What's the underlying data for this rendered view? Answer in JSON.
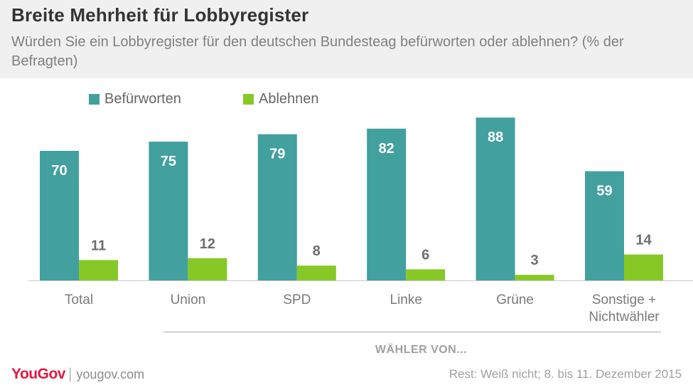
{
  "header": {
    "title": "Breite Mehrheit für Lobbyregister",
    "subtitle": "Würden Sie ein Lobbyregister für den deutschen Bundesteag befürworten oder ablehnen? (% der Befragten)"
  },
  "colors": {
    "befuerworten": "#42a09f",
    "ablehnen": "#86c926",
    "header_bg": "#f0f0f0",
    "brand": "#e5173f"
  },
  "chart_data": {
    "type": "bar",
    "categories": [
      "Total",
      "Union",
      "SPD",
      "Linke",
      "Grüne",
      "Sonstige + Nichtwähler"
    ],
    "series": [
      {
        "name": "Befürworten",
        "values": [
          70,
          75,
          79,
          82,
          88,
          59
        ]
      },
      {
        "name": "Ablehnen",
        "values": [
          11,
          12,
          8,
          6,
          3,
          14
        ]
      }
    ],
    "ylim": [
      0,
      100
    ],
    "grid": false,
    "legend": "top-left",
    "group_caption": "WÄHLER VON..."
  },
  "footer": {
    "logo": "YouGov",
    "separator": "|",
    "url": "yougov.com",
    "note": "Rest: Weiß nicht; 8. bis 11. Dezember 2015"
  }
}
